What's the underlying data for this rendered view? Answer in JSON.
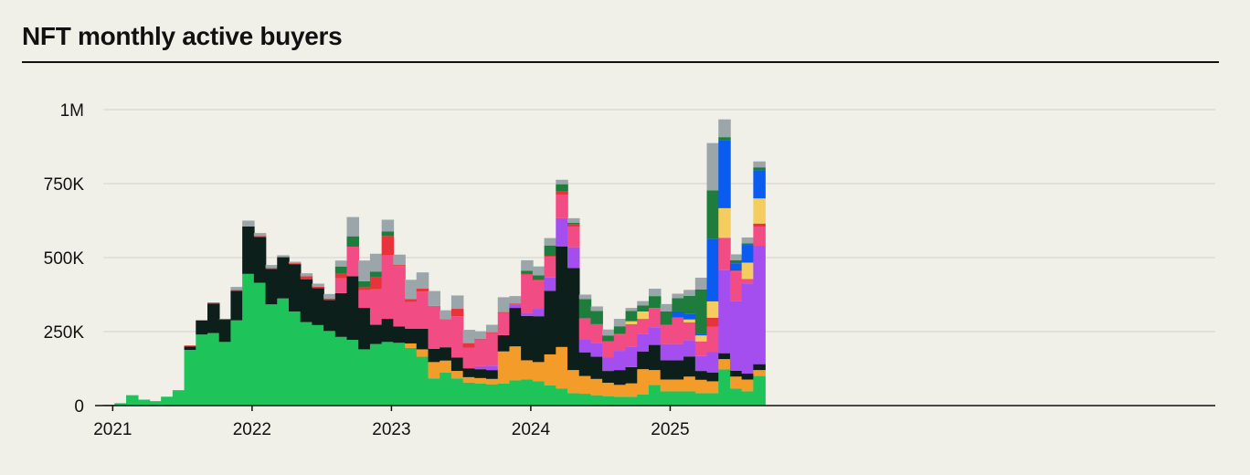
{
  "chart_data": {
    "type": "bar",
    "stacked": true,
    "title": "NFT monthly active buyers",
    "xlabel": "",
    "ylabel": "",
    "ylim": [
      0,
      1000000
    ],
    "y_ticks": [
      0,
      250000,
      500000,
      750000,
      1000000
    ],
    "y_tick_labels": [
      "0",
      "250K",
      "500K",
      "750K",
      "1M"
    ],
    "x_tick_labels": [
      "2021",
      "2022",
      "2023",
      "2024",
      "2025"
    ],
    "gridlines": true,
    "legend": "none",
    "categories": [
      "2021-01",
      "2021-02",
      "2021-03",
      "2021-04",
      "2021-05",
      "2021-06",
      "2021-07",
      "2021-08",
      "2021-09",
      "2021-10",
      "2021-11",
      "2021-12",
      "2022-01",
      "2022-02",
      "2022-03",
      "2022-04",
      "2022-05",
      "2022-06",
      "2022-07",
      "2022-08",
      "2022-09",
      "2022-10",
      "2022-11",
      "2022-12",
      "2023-01",
      "2023-02",
      "2023-03",
      "2023-04",
      "2023-05",
      "2023-06",
      "2023-07",
      "2023-08",
      "2023-09",
      "2023-10",
      "2023-11",
      "2023-12",
      "2024-01",
      "2024-02",
      "2024-03",
      "2024-04",
      "2024-05",
      "2024-06",
      "2024-07",
      "2024-08",
      "2024-09",
      "2024-10",
      "2024-11",
      "2024-12",
      "2025-01",
      "2025-02",
      "2025-03",
      "2025-04",
      "2025-05",
      "2025-06",
      "2025-07",
      "2025-08",
      "2025-09"
    ],
    "series": [
      {
        "name": "series-1",
        "color": "#1ec45a",
        "values": [
          3000,
          8000,
          35000,
          20000,
          15000,
          30000,
          52000,
          188000,
          240000,
          245000,
          215000,
          288000,
          445000,
          415000,
          342000,
          362000,
          318000,
          282000,
          272000,
          252000,
          232000,
          222000,
          190000,
          208000,
          215000,
          212000,
          195000,
          165000,
          92000,
          112000,
          92000,
          78000,
          75000,
          72000,
          75000,
          85000,
          88000,
          82000,
          68000,
          58000,
          42000,
          40000,
          35000,
          32000,
          30000,
          30000,
          38000,
          70000,
          48000,
          48000,
          48000,
          42000,
          42000,
          122000,
          58000,
          48000,
          100000
        ]
      },
      {
        "name": "series-2",
        "color": "#f49c2a",
        "values": [
          0,
          0,
          0,
          0,
          0,
          0,
          0,
          0,
          0,
          0,
          0,
          0,
          0,
          0,
          0,
          0,
          0,
          0,
          0,
          0,
          0,
          0,
          0,
          0,
          0,
          0,
          15000,
          25000,
          55000,
          40000,
          25000,
          18000,
          18000,
          18000,
          108000,
          115000,
          65000,
          65000,
          105000,
          140000,
          78000,
          60000,
          55000,
          45000,
          40000,
          45000,
          85000,
          50000,
          40000,
          40000,
          50000,
          45000,
          40000,
          35000,
          40000,
          40000,
          20000
        ]
      },
      {
        "name": "series-3",
        "color": "#0d1f1a",
        "values": [
          0,
          0,
          0,
          0,
          0,
          0,
          0,
          12000,
          48000,
          100000,
          75000,
          100000,
          160000,
          155000,
          120000,
          138000,
          160000,
          145000,
          125000,
          105000,
          148000,
          215000,
          140000,
          65000,
          78000,
          55000,
          50000,
          70000,
          45000,
          45000,
          45000,
          30000,
          30000,
          30000,
          55000,
          130000,
          150000,
          155000,
          215000,
          340000,
          345000,
          80000,
          75000,
          40000,
          50000,
          55000,
          60000,
          85000,
          65000,
          65000,
          68000,
          30000,
          30000,
          20000,
          20000,
          20000,
          20000
        ]
      },
      {
        "name": "series-4",
        "color": "#a54ef0",
        "values": [
          0,
          0,
          0,
          0,
          0,
          0,
          0,
          0,
          0,
          0,
          0,
          0,
          0,
          0,
          0,
          0,
          0,
          0,
          0,
          0,
          0,
          0,
          0,
          0,
          0,
          0,
          0,
          0,
          0,
          0,
          0,
          0,
          10000,
          15000,
          0,
          12000,
          10000,
          25000,
          45000,
          95000,
          70000,
          45000,
          45000,
          45000,
          65000,
          70000,
          60000,
          60000,
          55000,
          55000,
          55000,
          50000,
          70000,
          280000,
          235000,
          305000,
          400000
        ]
      },
      {
        "name": "series-5",
        "color": "#f24c85",
        "values": [
          0,
          0,
          0,
          0,
          0,
          0,
          0,
          0,
          0,
          0,
          0,
          0,
          0,
          0,
          0,
          0,
          0,
          0,
          0,
          0,
          50000,
          100000,
          60000,
          120000,
          215000,
          205000,
          90000,
          125000,
          145000,
          95000,
          140000,
          70000,
          90000,
          110000,
          75000,
          0,
          130000,
          95000,
          70000,
          80000,
          70000,
          70000,
          65000,
          55000,
          55000,
          75000,
          50000,
          65000,
          65000,
          90000,
          60000,
          50000,
          85000,
          110000,
          100000,
          15000,
          65000
        ]
      },
      {
        "name": "series-6",
        "color": "#e8333a",
        "values": [
          0,
          0,
          0,
          0,
          0,
          0,
          0,
          3000,
          0,
          3000,
          3000,
          3000,
          0,
          3000,
          3000,
          3000,
          3000,
          10000,
          5000,
          5000,
          15000,
          0,
          10000,
          40000,
          65000,
          3000,
          10000,
          10000,
          0,
          0,
          25000,
          15000,
          3000,
          3000,
          3000,
          3000,
          3000,
          3000,
          3000,
          10000,
          8000,
          0,
          0,
          0,
          3000,
          0,
          0,
          0,
          0,
          0,
          0,
          0,
          30000,
          0,
          3000,
          0,
          10000
        ]
      },
      {
        "name": "series-7",
        "color": "#f4cd5e",
        "values": [
          0,
          0,
          0,
          0,
          0,
          0,
          0,
          0,
          0,
          0,
          0,
          0,
          0,
          0,
          0,
          0,
          0,
          0,
          0,
          0,
          0,
          0,
          0,
          0,
          0,
          0,
          0,
          0,
          0,
          0,
          0,
          0,
          0,
          0,
          0,
          0,
          0,
          0,
          0,
          0,
          0,
          0,
          0,
          0,
          0,
          10000,
          25000,
          0,
          0,
          0,
          10000,
          20000,
          55000,
          100000,
          0,
          55000,
          85000
        ]
      },
      {
        "name": "series-8",
        "color": "#0a5cf0",
        "values": [
          0,
          0,
          0,
          0,
          0,
          0,
          0,
          0,
          0,
          0,
          0,
          0,
          0,
          0,
          0,
          0,
          0,
          0,
          0,
          0,
          0,
          0,
          0,
          0,
          0,
          0,
          0,
          0,
          0,
          0,
          0,
          0,
          0,
          0,
          0,
          0,
          0,
          0,
          0,
          0,
          0,
          0,
          0,
          0,
          0,
          0,
          0,
          0,
          0,
          20000,
          20000,
          5000,
          210000,
          230000,
          25000,
          60000,
          95000
        ]
      },
      {
        "name": "series-9",
        "color": "#1e7d3c",
        "values": [
          0,
          0,
          0,
          0,
          0,
          0,
          0,
          0,
          0,
          0,
          0,
          0,
          0,
          0,
          0,
          0,
          0,
          0,
          0,
          0,
          25000,
          35000,
          20000,
          20000,
          15000,
          0,
          0,
          0,
          0,
          0,
          0,
          0,
          0,
          0,
          0,
          0,
          10000,
          15000,
          35000,
          25000,
          5000,
          65000,
          45000,
          20000,
          25000,
          35000,
          20000,
          40000,
          45000,
          45000,
          60000,
          150000,
          165000,
          10000,
          10000,
          5000,
          10000
        ]
      },
      {
        "name": "series-10",
        "color": "#9aa6aa",
        "values": [
          0,
          0,
          0,
          0,
          0,
          0,
          0,
          0,
          0,
          0,
          0,
          10000,
          20000,
          10000,
          10000,
          5000,
          5000,
          10000,
          10000,
          15000,
          20000,
          65000,
          70000,
          60000,
          40000,
          35000,
          65000,
          55000,
          50000,
          30000,
          45000,
          45000,
          25000,
          25000,
          50000,
          25000,
          35000,
          30000,
          25000,
          15000,
          15000,
          15000,
          15000,
          20000,
          25000,
          10000,
          15000,
          25000,
          25000,
          15000,
          20000,
          40000,
          160000,
          60000,
          20000,
          20000,
          20000
        ]
      }
    ]
  }
}
